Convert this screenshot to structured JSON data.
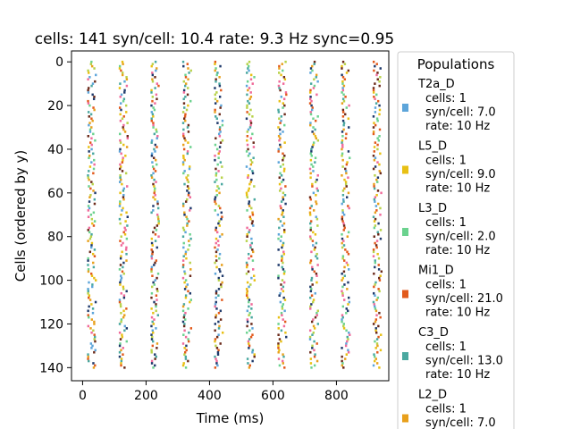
{
  "chart_data": {
    "type": "scatter",
    "title": "cells: 141   syn/cell: 10.4   rate: 9.3 Hz    sync=0.95",
    "xlabel": "Time (ms)",
    "ylabel": "Cells (ordered by y)",
    "xlim": [
      -35,
      965
    ],
    "ylim": [
      146,
      -5
    ],
    "y_inverted": true,
    "xticks": [
      0,
      200,
      400,
      600,
      800
    ],
    "yticks": [
      0,
      20,
      40,
      60,
      80,
      100,
      120,
      140
    ],
    "burst_times_ms": [
      20,
      120,
      220,
      320,
      420,
      520,
      620,
      720,
      820,
      920
    ],
    "burst_jitter_ms": 25,
    "cell_range": [
      0,
      140
    ],
    "grid": false,
    "legend": {
      "title": "Populations",
      "placement": "right",
      "entries": [
        {
          "name": "T2a_D",
          "lines": [
            "cells: 1",
            "syn/cell: 7.0",
            "rate: 10 Hz"
          ],
          "color": "#5DA5DA"
        },
        {
          "name": "L5_D",
          "lines": [
            "cells: 1",
            "syn/cell: 9.0",
            "rate: 10 Hz"
          ],
          "color": "#E8C014"
        },
        {
          "name": "L3_D",
          "lines": [
            "cells: 1",
            "syn/cell: 2.0",
            "rate: 10 Hz"
          ],
          "color": "#6BD28E"
        },
        {
          "name": "Mi1_D",
          "lines": [
            "cells: 1",
            "syn/cell: 21.0",
            "rate: 10 Hz"
          ],
          "color": "#E25A1C"
        },
        {
          "name": "C3_D",
          "lines": [
            "cells: 1",
            "syn/cell: 13.0",
            "rate: 10 Hz"
          ],
          "color": "#4AA8A0"
        },
        {
          "name": "L2_D",
          "lines": [
            "cells: 1",
            "syn/cell: 7.0"
          ],
          "color": "#E8A01C"
        }
      ]
    },
    "extra_colors": [
      "#F06A9A",
      "#1F3A6B",
      "#6B2A1A",
      "#B8D24A"
    ]
  }
}
